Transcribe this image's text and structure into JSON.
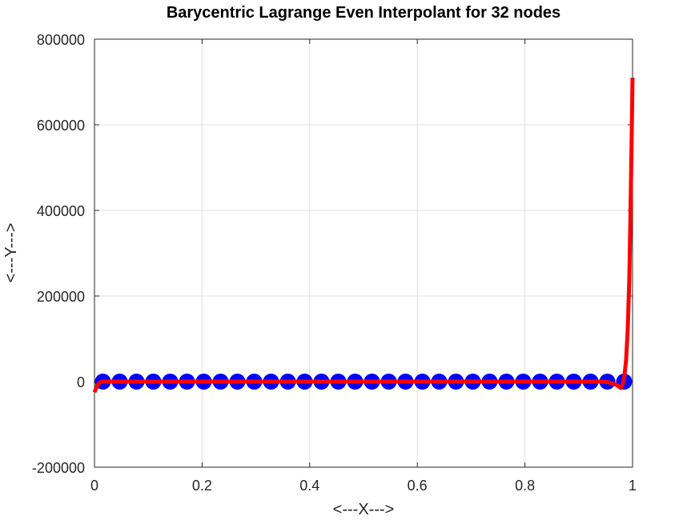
{
  "chart_data": {
    "type": "line",
    "title": "Barycentric Lagrange Even Interpolant for 32 nodes",
    "xlabel": "<---X--->",
    "ylabel": "<---Y--->",
    "xlim": [
      0,
      1
    ],
    "ylim": [
      -200000,
      800000
    ],
    "grid": true,
    "xticks": [
      0,
      0.2,
      0.4,
      0.6,
      0.8,
      1
    ],
    "xtick_labels": [
      "0",
      "0.2",
      "0.4",
      "0.6",
      "0.8",
      "1"
    ],
    "yticks": [
      -200000,
      0,
      200000,
      400000,
      600000,
      800000
    ],
    "ytick_labels": [
      "-200000",
      "0",
      "200000",
      "400000",
      "600000",
      "800000"
    ],
    "series": [
      {
        "kind": "markers",
        "color": "#0000ff",
        "x": [
          0.015625,
          0.046875,
          0.078125,
          0.109375,
          0.140625,
          0.171875,
          0.203125,
          0.234375,
          0.265625,
          0.296875,
          0.328125,
          0.359375,
          0.390625,
          0.421875,
          0.453125,
          0.484375,
          0.515625,
          0.546875,
          0.578125,
          0.609375,
          0.640625,
          0.671875,
          0.703125,
          0.734375,
          0.765625,
          0.796875,
          0.828125,
          0.859375,
          0.890625,
          0.921875,
          0.953125,
          0.984375
        ],
        "y": [
          0,
          0,
          0,
          0,
          0,
          0,
          0,
          0,
          0,
          0,
          0,
          0,
          0,
          0,
          0,
          0,
          0,
          0,
          0,
          0,
          0,
          0,
          0,
          0,
          0,
          0,
          0,
          0,
          0,
          0,
          0,
          0
        ]
      },
      {
        "kind": "line",
        "color": "#ff0000",
        "x": [
          0.0,
          0.004,
          0.008,
          0.012,
          0.016,
          0.02,
          0.5,
          0.94,
          0.955,
          0.965,
          0.972,
          0.978,
          0.982,
          0.985,
          0.988,
          0.991,
          0.994,
          0.996,
          0.998,
          1.0
        ],
        "y": [
          -25000,
          -12000,
          -4000,
          -800,
          0,
          0,
          0,
          0,
          -1500,
          -5000,
          -9000,
          -15000,
          -5000,
          15000,
          50000,
          120000,
          240000,
          380000,
          540000,
          710000
        ]
      }
    ]
  }
}
